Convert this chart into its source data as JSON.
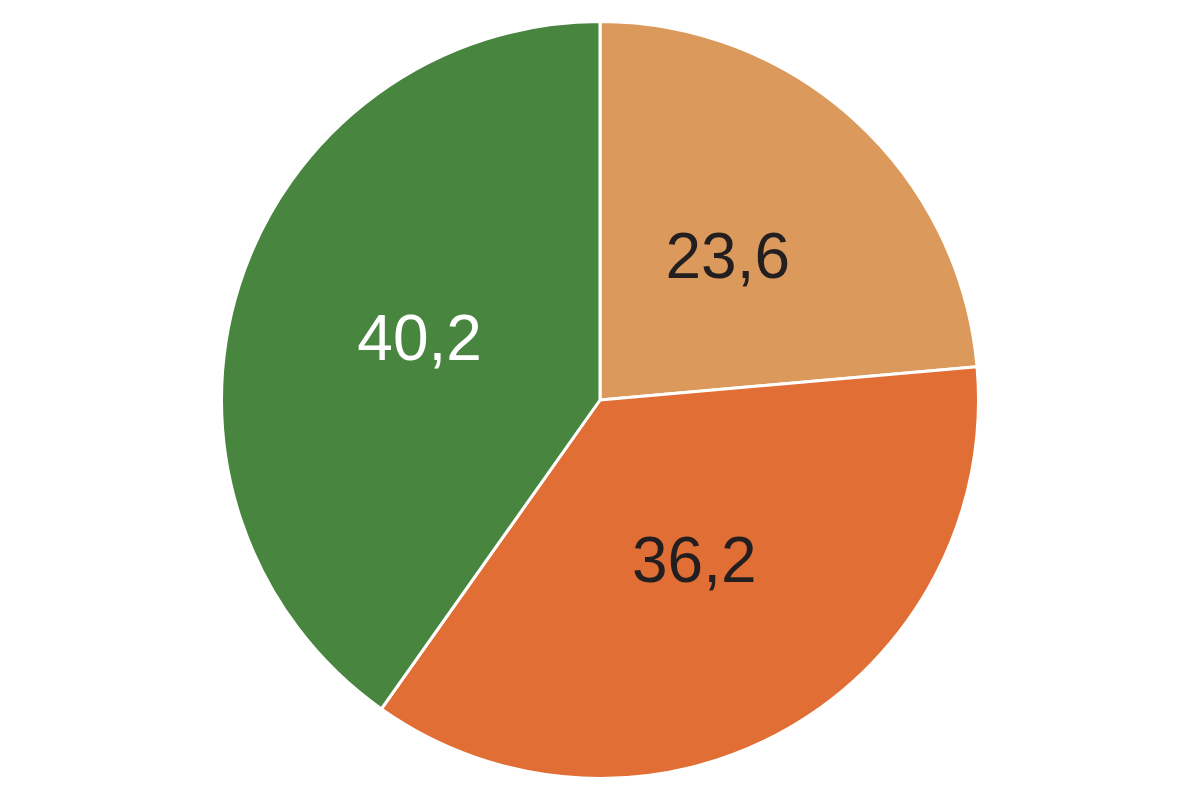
{
  "chart_data": {
    "type": "pie",
    "categories": [
      null,
      null,
      null
    ],
    "values": [
      23.6,
      36.2,
      40.2
    ],
    "colors": [
      "#db9a5b",
      "#e06e35",
      "#488640"
    ],
    "value_labels": [
      "23,6",
      "36,2",
      "40,2"
    ],
    "legend": false
  }
}
